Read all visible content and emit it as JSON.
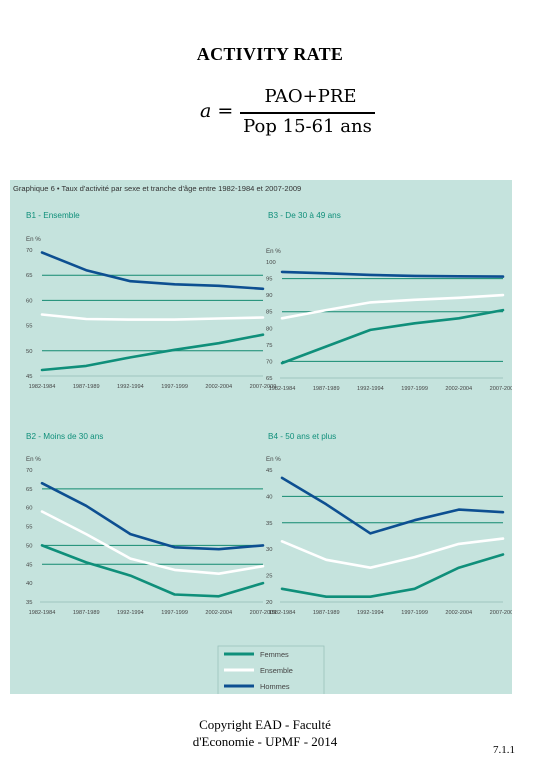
{
  "page": {
    "title": "ACTIVITY RATE",
    "formula_lhs": "a =",
    "formula_num": "PAO+PRE",
    "formula_den": "Pop 15-61 ans",
    "footer_line1": "Copyright EAD - Faculté",
    "footer_line2": "d'Economie - UPMF - 2014",
    "page_number": "7.1.1"
  },
  "figure": {
    "title": "Graphique 6 • Taux d'activité par sexe et tranche d'âge entre 1982-1984 et 2007-2009",
    "x_tick_labels": [
      "1982-1984",
      "1987-1989",
      "1992-1994",
      "1997-1999",
      "2002-2004",
      "2007-2009"
    ],
    "legend": [
      "Femmes",
      "Ensemble",
      "Hommes"
    ],
    "colors": {
      "background": "#c5e3dd",
      "hommes": "#0d4f91",
      "ensemble": "#ffffff",
      "femmes": "#0f8f7a",
      "gridline": "#138a70"
    }
  },
  "chart_data": [
    {
      "type": "line",
      "title": "B1 - Ensemble",
      "ylabel": "En %",
      "ylim": [
        45,
        70
      ],
      "yticks": [
        45,
        50,
        55,
        60,
        65,
        70
      ],
      "grid_y": [
        50,
        60,
        65
      ],
      "x": [
        "1982-1984",
        "1987-1989",
        "1992-1994",
        "1997-1999",
        "2002-2004",
        "2007-2009"
      ],
      "series": [
        {
          "name": "Hommes",
          "values": [
            69.5,
            66.0,
            63.8,
            63.2,
            62.9,
            62.3
          ]
        },
        {
          "name": "Ensemble",
          "values": [
            57.2,
            56.3,
            56.2,
            56.2,
            56.4,
            56.6
          ]
        },
        {
          "name": "Femmes",
          "values": [
            46.2,
            47.0,
            48.7,
            50.2,
            51.5,
            53.2
          ]
        }
      ]
    },
    {
      "type": "line",
      "title": "B3 - De 30 à 49 ans",
      "ylabel": "En %",
      "ylim": [
        65,
        100
      ],
      "yticks": [
        65,
        70,
        75,
        80,
        85,
        90,
        95,
        100
      ],
      "grid_y": [
        70,
        85,
        95
      ],
      "x": [
        "1982-1984",
        "1987-1989",
        "1992-1994",
        "1997-1999",
        "2002-2004",
        "2007-2009"
      ],
      "series": [
        {
          "name": "Hommes",
          "values": [
            97.0,
            96.6,
            96.1,
            95.8,
            95.7,
            95.6
          ]
        },
        {
          "name": "Ensemble",
          "values": [
            83.0,
            85.5,
            87.8,
            88.6,
            89.2,
            90.0
          ]
        },
        {
          "name": "Femmes",
          "values": [
            69.5,
            74.5,
            79.5,
            81.5,
            83.0,
            85.5
          ]
        }
      ]
    },
    {
      "type": "line",
      "title": "B2 - Moins de 30 ans",
      "ylabel": "En %",
      "ylim": [
        35,
        70
      ],
      "yticks": [
        35,
        40,
        45,
        50,
        55,
        60,
        65,
        70
      ],
      "grid_y": [
        45,
        50,
        65
      ],
      "x": [
        "1982-1984",
        "1987-1989",
        "1992-1994",
        "1997-1999",
        "2002-2004",
        "2007-2009"
      ],
      "series": [
        {
          "name": "Hommes",
          "values": [
            66.5,
            60.5,
            53.0,
            49.5,
            49.0,
            50.0
          ]
        },
        {
          "name": "Ensemble",
          "values": [
            59.0,
            53.0,
            46.5,
            43.5,
            42.5,
            44.5
          ]
        },
        {
          "name": "Femmes",
          "values": [
            50.0,
            45.5,
            42.0,
            37.0,
            36.5,
            40.0
          ]
        }
      ]
    },
    {
      "type": "line",
      "title": "B4 - 50 ans et plus",
      "ylabel": "En %",
      "ylim": [
        20,
        45
      ],
      "yticks": [
        20,
        25,
        30,
        35,
        40,
        45
      ],
      "grid_y": [
        35,
        40
      ],
      "x": [
        "1982-1984",
        "1987-1989",
        "1992-1994",
        "1997-1999",
        "2002-2004",
        "2007-2009"
      ],
      "series": [
        {
          "name": "Hommes",
          "values": [
            43.5,
            38.5,
            33.0,
            35.5,
            37.5,
            37.0
          ]
        },
        {
          "name": "Ensemble",
          "values": [
            31.5,
            28.0,
            26.5,
            28.5,
            31.0,
            32.0
          ]
        },
        {
          "name": "Femmes",
          "values": [
            22.5,
            21.0,
            21.0,
            22.5,
            26.5,
            29.0
          ]
        }
      ]
    }
  ]
}
